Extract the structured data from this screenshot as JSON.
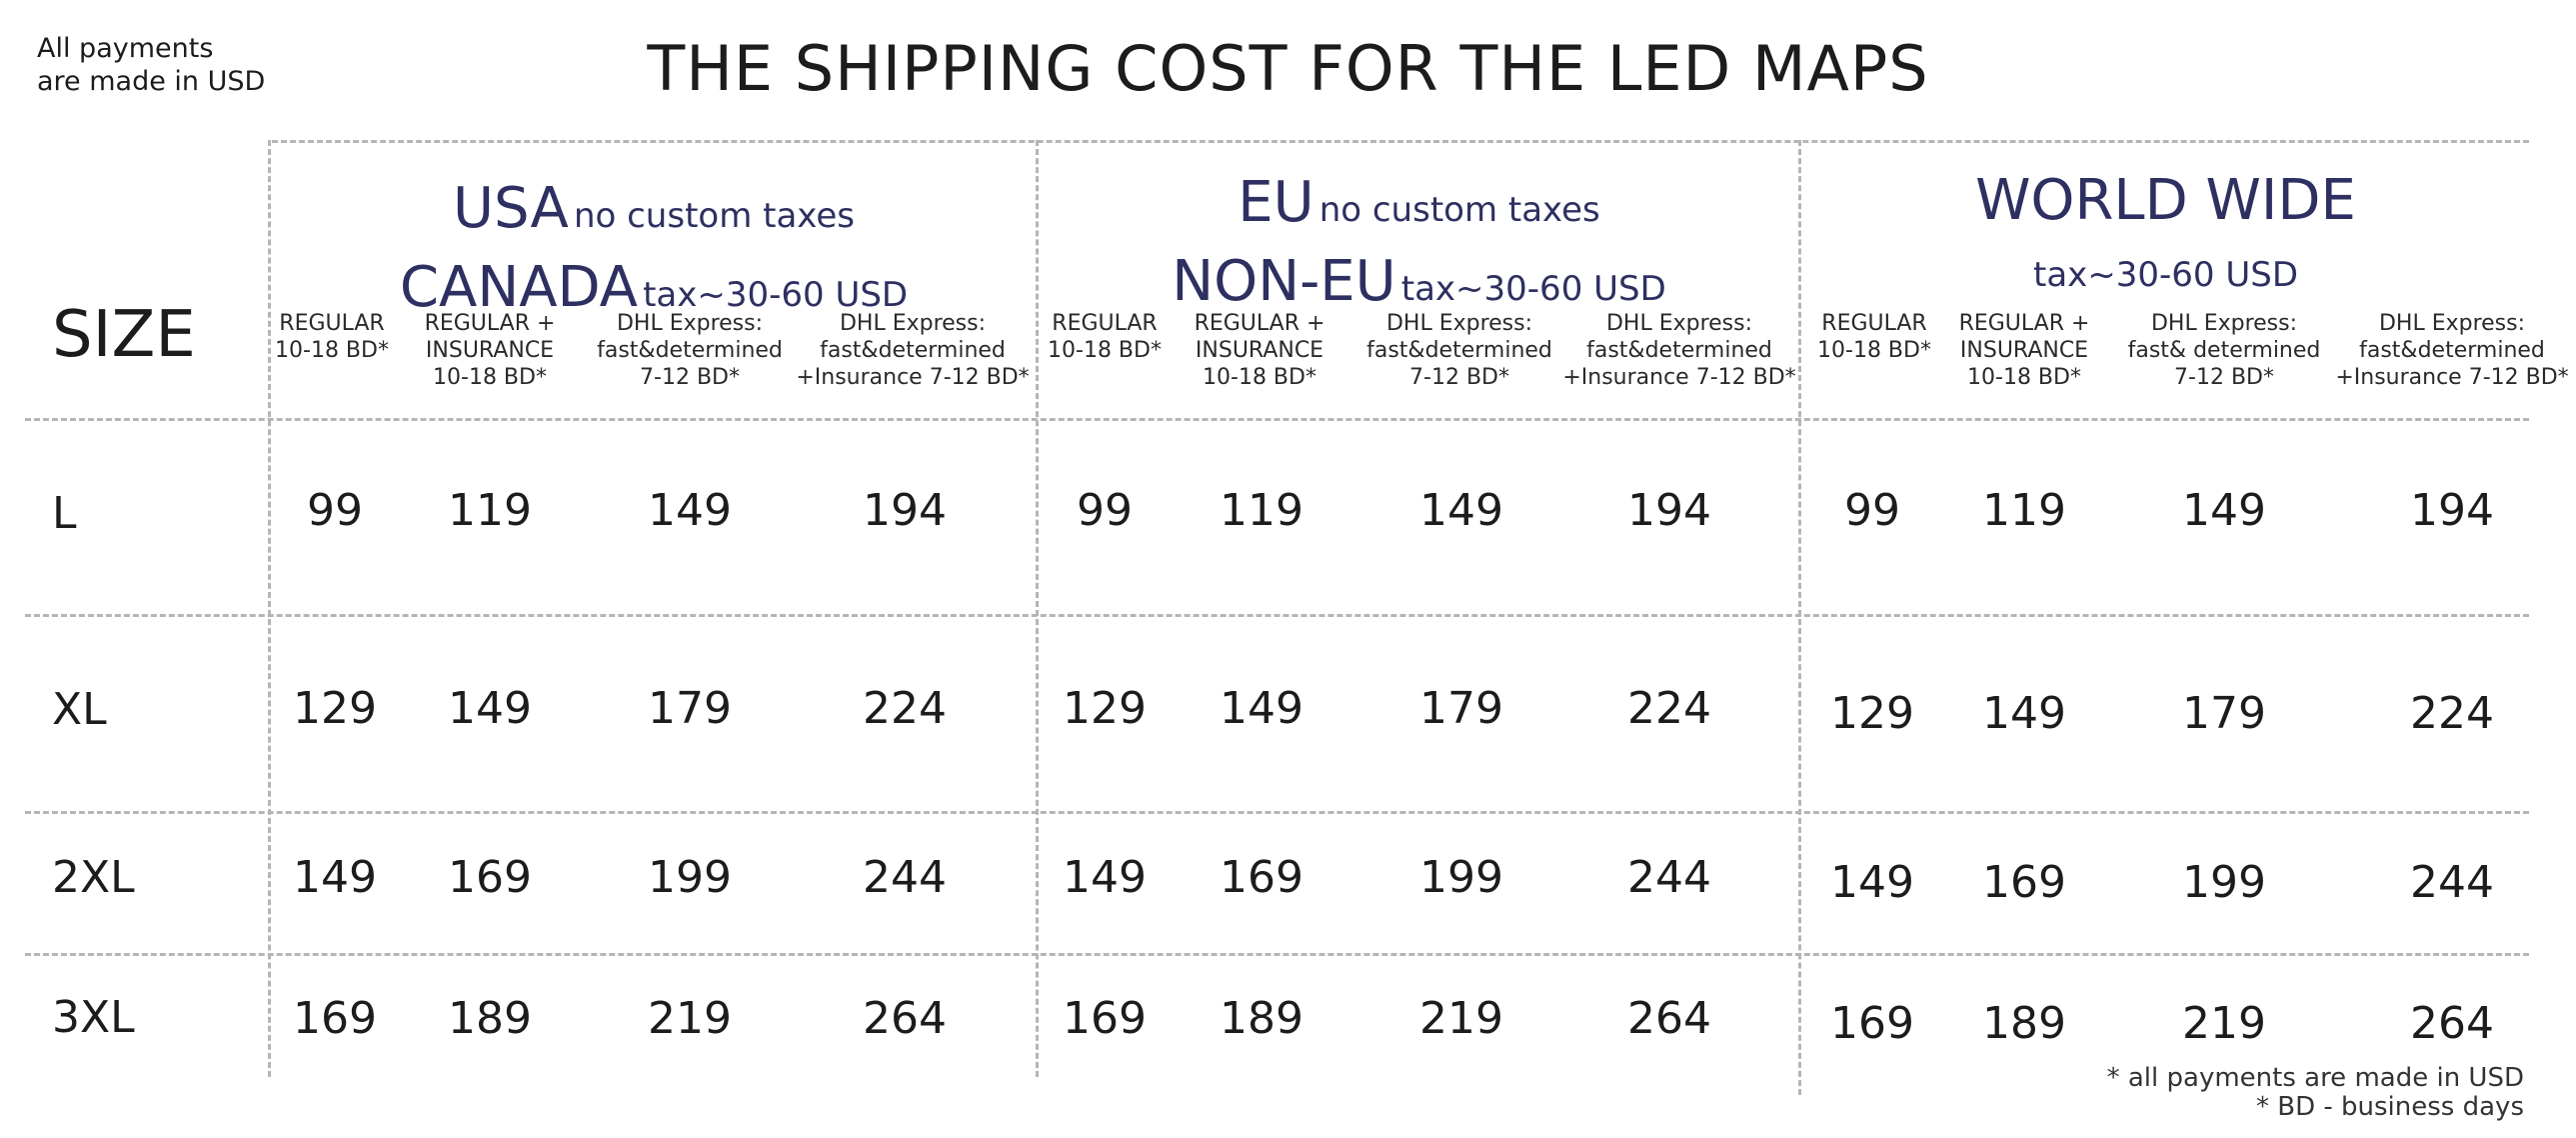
{
  "top_note": [
    "All payments",
    "are made in USD"
  ],
  "title": "THE SHIPPING COST FOR THE LED MAPS",
  "size_header": "SIZE",
  "regions": [
    {
      "line1_big": "USA",
      "line1_small": "no custom taxes",
      "line2_big": "CANADA",
      "line2_small": "tax~30-60 USD",
      "subheaders": [
        "REGULAR\n10-18 BD*",
        "REGULAR  +\nINSURANCE\n10-18 BD*",
        "DHL Express:\nfast&determined\n7-12 BD*",
        "DHL Express:\nfast&determined\n+Insurance 7-12 BD*"
      ]
    },
    {
      "line1_big": "EU",
      "line1_small": "no custom taxes",
      "line2_big": "NON-EU",
      "line2_small": "tax~30-60 USD",
      "subheaders": [
        "REGULAR\n10-18 BD*",
        "REGULAR  +\nINSURANCE\n10-18 BD*",
        "DHL Express:\nfast&determined\n7-12 BD*",
        "DHL Express:\nfast&determined\n+Insurance 7-12 BD*"
      ]
    },
    {
      "line1_big": "WORLD WIDE",
      "line1_small": "",
      "line2_big": "",
      "line2_small": "tax~30-60 USD",
      "subheaders": [
        "REGULAR\n10-18 BD*",
        "REGULAR  +\nINSURANCE\n10-18 BD*",
        "DHL Express:\nfast& determined\n7-12 BD*",
        "DHL Express:\nfast&determined\n+Insurance 7-12 BD*"
      ]
    }
  ],
  "rows": [
    {
      "size": "L",
      "prices": [
        "99",
        "119",
        "149",
        "194",
        "99",
        "119",
        "149",
        "194",
        "99",
        "119",
        "149",
        "194"
      ]
    },
    {
      "size": "XL",
      "prices": [
        "129",
        "149",
        "179",
        "224",
        "129",
        "149",
        "179",
        "224",
        "129",
        "149",
        "179",
        "224"
      ]
    },
    {
      "size": "2XL",
      "prices": [
        "149",
        "169",
        "199",
        "244",
        "149",
        "169",
        "199",
        "244",
        "149",
        "169",
        "199",
        "244"
      ]
    },
    {
      "size": "3XL",
      "prices": [
        "169",
        "189",
        "219",
        "264",
        "169",
        "189",
        "219",
        "264",
        "169",
        "189",
        "219",
        "264"
      ]
    }
  ],
  "footnotes": [
    "* all payments are made in USD",
    "* BD - business days"
  ]
}
